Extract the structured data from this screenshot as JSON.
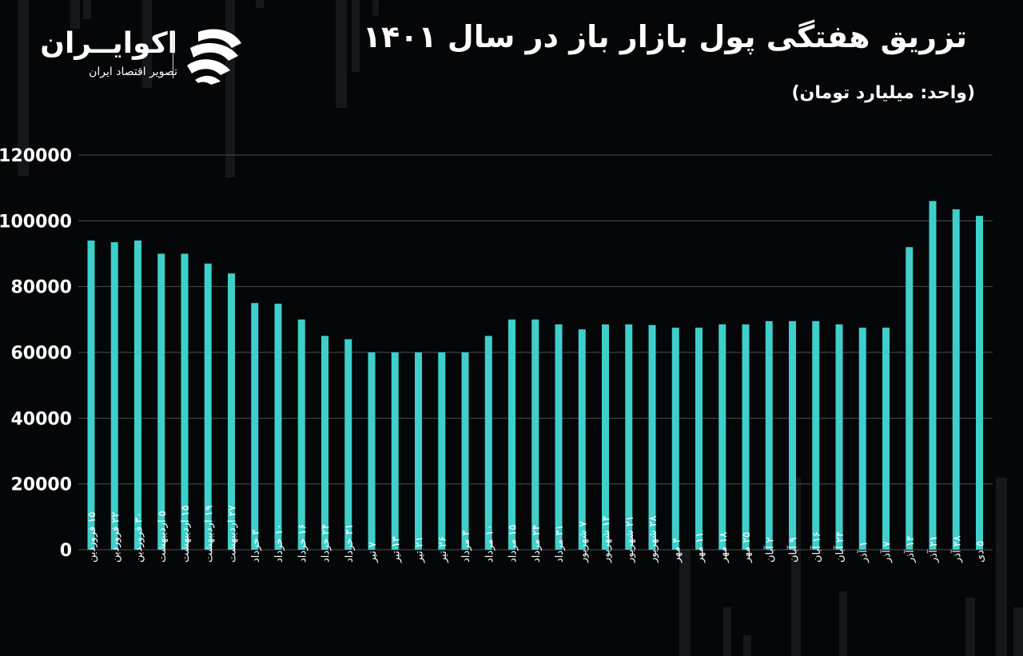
{
  "header": {
    "title": "تزریق هفتگی پول بازار باز در سال ۱۴۰۱",
    "unit": "(واحد: میلیارد تومان)"
  },
  "logo": {
    "name": "اکوایــران",
    "tagline": "تصویر اقتصاد ایران",
    "mark_icon": "ecoiran-logo-icon"
  },
  "colors": {
    "background": "#050607",
    "bar": "#3ecfcb",
    "grid": "#4a4d50",
    "text": "#ffffff"
  },
  "chart_data": {
    "type": "bar",
    "title": "تزریق هفتگی پول بازار باز در سال ۱۴۰۱",
    "ylabel": "",
    "xlabel": "",
    "ylim": [
      0,
      120000
    ],
    "yticks": [
      0,
      20000,
      40000,
      60000,
      80000,
      100000,
      120000
    ],
    "ytick_labels": [
      "0",
      "20000",
      "40000",
      "60000",
      "80000",
      "100000",
      "120000"
    ],
    "grid": true,
    "categories": [
      "۱۵ فروردین",
      "۲۲ فروردین",
      "۳۰ فروردین",
      "۵ اردیبهشت",
      "۱۵ اردیبهشت",
      "۱۹ اردیبهشت",
      "۲۷ اردیبهشت",
      "۳ خرداد",
      "۱۰ خرداد",
      "۱۶ خرداد",
      "۲۴ خرداد",
      "۳۱ خرداد",
      "۷ تیر",
      "۱۳ تیر",
      "۲۱ تیر",
      "۲۶ تیر",
      "۳ مرداد",
      "۱۰ مرداد",
      "۱۵ مرداد",
      "۲۴ مرداد",
      "۳۱ مرداد",
      "۷ شهریور",
      "۱۴ شهریور",
      "۲۱ شهریور",
      "۲۸ شهریور",
      "۴ مهر",
      "۱۱ مهر",
      "۱۸ مهر",
      "۲۵ مهر",
      "۲ آبان",
      "۹ آبان",
      "۱۶ آبان",
      "۲۴ آبان",
      "۱ آذر",
      "۷ آذر",
      "۱۴ آذر",
      "۲۱ آذر",
      "۲۸ آذر",
      "۵ دی"
    ],
    "values": [
      94000,
      93500,
      94000,
      90000,
      90000,
      87000,
      84000,
      75000,
      74800,
      70000,
      65000,
      64000,
      60000,
      60000,
      60000,
      60000,
      60000,
      65000,
      70000,
      70000,
      68500,
      67000,
      68500,
      68500,
      68300,
      67500,
      67500,
      68500,
      68500,
      69500,
      69500,
      69500,
      68500,
      67500,
      67500,
      92000,
      106000,
      103500,
      101500
    ]
  }
}
